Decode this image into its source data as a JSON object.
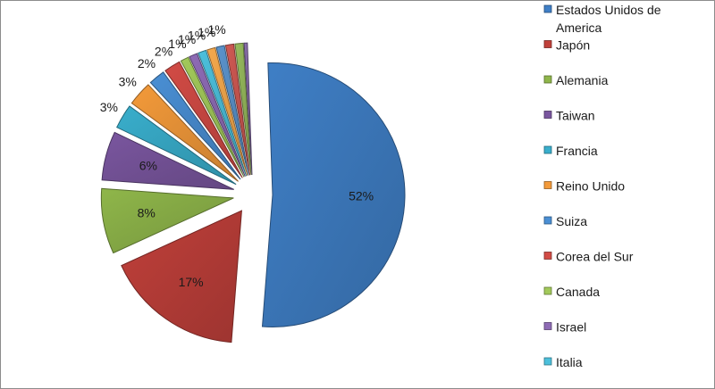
{
  "chart_data": {
    "type": "pie",
    "exploded": true,
    "legend_position": "right",
    "slices": [
      {
        "label": "Estados Unidos de\nAmerica",
        "value": 52,
        "pct_label": "52%",
        "color": "#3f7fc6"
      },
      {
        "label": "Japón",
        "value": 17,
        "pct_label": "17%",
        "color": "#c0403a"
      },
      {
        "label": "Alemania",
        "value": 8,
        "pct_label": "8%",
        "color": "#8fb64a"
      },
      {
        "label": "Taiwan",
        "value": 6,
        "pct_label": "6%",
        "color": "#7a569f"
      },
      {
        "label": "Francia",
        "value": 3,
        "pct_label": "3%",
        "color": "#39aecc"
      },
      {
        "label": "Reino Unido",
        "value": 3,
        "pct_label": "3%",
        "color": "#f39a3a"
      },
      {
        "label": "Suiza",
        "value": 2,
        "pct_label": "2%",
        "color": "#4a8fd4"
      },
      {
        "label": "Corea del Sur",
        "value": 2,
        "pct_label": "2%",
        "color": "#d24b45"
      },
      {
        "label": "Canada",
        "value": 1,
        "pct_label": "1%",
        "color": "#a2c95a"
      },
      {
        "label": "Israel",
        "value": 1,
        "pct_label": "1%",
        "color": "#8e6bb5"
      },
      {
        "label": "Italia",
        "value": 1,
        "pct_label": "1%",
        "color": "#4cc0dc"
      },
      {
        "value": 1,
        "pct_label": "1%",
        "color": "#f5a94d"
      },
      {
        "value": 1,
        "pct_label": "1%",
        "color": "#5b93cc"
      },
      {
        "value": 1,
        "pct_label": "",
        "color": "#cf5953"
      },
      {
        "value": 1,
        "pct_label": "",
        "color": "#97bb5d"
      },
      {
        "value": 0.4,
        "pct_label": "",
        "color": "#8b6fad"
      }
    ]
  }
}
